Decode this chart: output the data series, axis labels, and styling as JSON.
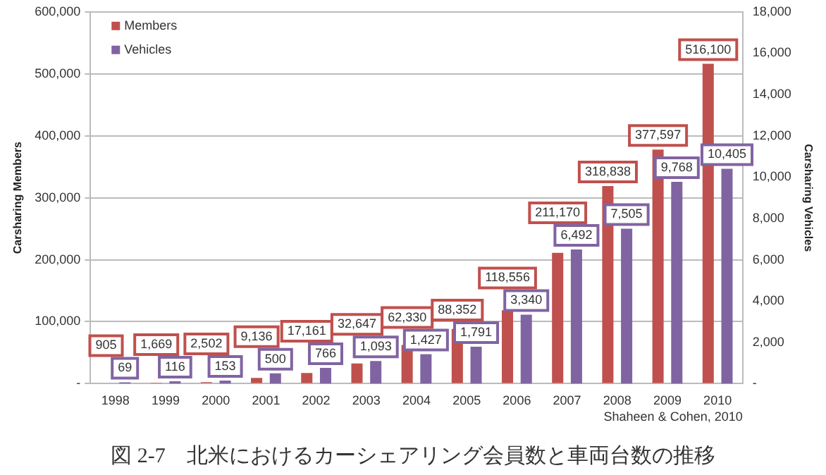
{
  "chart_data": {
    "type": "bar",
    "ylabel": "Carsharing Members",
    "y2label": "Carsharing Vehicles",
    "categories": [
      "1998",
      "1999",
      "2000",
      "2001",
      "2002",
      "2003",
      "2004",
      "2005",
      "2006",
      "2007",
      "2008",
      "2009",
      "2010"
    ],
    "series": [
      {
        "name": "Members",
        "color": "#c0504d",
        "values": [
          905,
          1669,
          2502,
          9136,
          17161,
          32647,
          62330,
          88352,
          118556,
          211170,
          318838,
          377597,
          516100
        ],
        "value_labels": [
          "905",
          "1,669",
          "2,502",
          "9,136",
          "17,161",
          "32,647",
          "62,330",
          "88,352",
          "118,556",
          "211,170",
          "318,838",
          "377,597",
          "516,100"
        ]
      },
      {
        "name": "Vehicles",
        "color": "#8064a2",
        "axis": "y2",
        "values": [
          69,
          116,
          153,
          500,
          766,
          1093,
          1427,
          1791,
          3340,
          6492,
          7505,
          9768,
          10405
        ],
        "value_labels": [
          "69",
          "116",
          "153",
          "500",
          "766",
          "1,093",
          "1,427",
          "1,791",
          "3,340",
          "6,492",
          "7,505",
          "9,768",
          "10,405"
        ]
      }
    ],
    "ylim": [
      0,
      600000
    ],
    "yticks": [
      {
        "value": 0,
        "label": "-"
      },
      {
        "value": 100000,
        "label": "100,000"
      },
      {
        "value": 200000,
        "label": "200,000"
      },
      {
        "value": 300000,
        "label": "300,000"
      },
      {
        "value": 400000,
        "label": "400,000"
      },
      {
        "value": 500000,
        "label": "500,000"
      },
      {
        "value": 600000,
        "label": "600,000"
      }
    ],
    "y2lim": [
      0,
      18000
    ],
    "y2ticks": [
      {
        "value": 0,
        "label": "-"
      },
      {
        "value": 2000,
        "label": "2,000"
      },
      {
        "value": 4000,
        "label": "4,000"
      },
      {
        "value": 6000,
        "label": "6,000"
      },
      {
        "value": 8000,
        "label": "8,000"
      },
      {
        "value": 10000,
        "label": "10,000"
      },
      {
        "value": 12000,
        "label": "12,000"
      },
      {
        "value": 14000,
        "label": "14,000"
      },
      {
        "value": 16000,
        "label": "16,000"
      },
      {
        "value": 18000,
        "label": "18,000"
      }
    ],
    "grid": "y",
    "legend": "top left",
    "annotations": [
      "Shaheen & Cohen, 2010",
      "図 2-7　北米におけるカーシェアリング会員数と車両台数の推移"
    ]
  }
}
